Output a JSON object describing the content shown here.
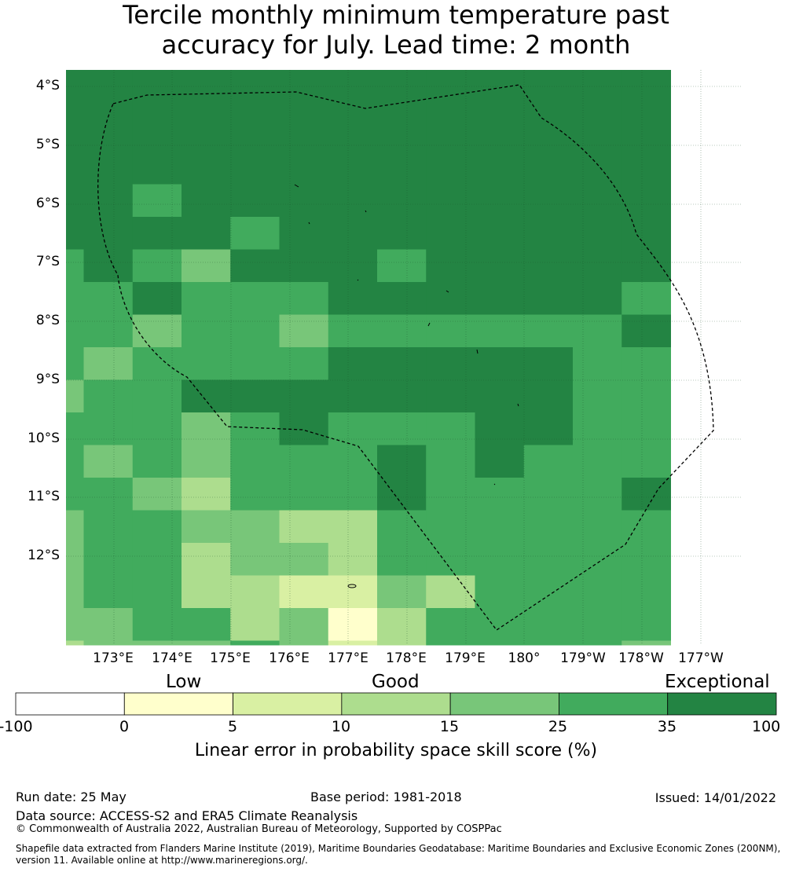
{
  "title_line1": "Tercile monthly minimum temperature past",
  "title_line2": "accuracy for July. Lead time: 2 month",
  "map": {
    "lon_labels": [
      "173°E",
      "174°E",
      "175°E",
      "176°E",
      "177°E",
      "178°E",
      "179°E",
      "180°",
      "179°W",
      "178°W",
      "177°W"
    ],
    "lat_labels": [
      "4°S",
      "5°S",
      "6°S",
      "7°S",
      "8°S",
      "9°S",
      "10°S",
      "11°S",
      "12°S"
    ],
    "grid": [
      "6666666666666",
      "6666666666666",
      "6666666666666",
      "6666666666666",
      "6656666666666",
      "6666566666666",
      "5654666566666",
      "5565556666665",
      "5545545555556",
      "5455556666655",
      "4556666666655",
      "5554565556655",
      "5454555656555",
      "5543555655556",
      "4554433555555",
      "4553443555555",
      "4553322435555",
      "4455341355555",
      "3444542355554",
      "3344223455544",
      "3314444345444"
    ]
  },
  "legend": {
    "categories": [
      "Low",
      "Good",
      "Exceptional"
    ],
    "bins": [
      {
        "from": -100,
        "to": 0,
        "color": "#ffffff"
      },
      {
        "from": 0,
        "to": 5,
        "color": "#ffffcc"
      },
      {
        "from": 5,
        "to": 10,
        "color": "#d9f0a3"
      },
      {
        "from": 10,
        "to": 15,
        "color": "#addd8e"
      },
      {
        "from": 15,
        "to": 25,
        "color": "#78c679"
      },
      {
        "from": 25,
        "to": 35,
        "color": "#41ab5d"
      },
      {
        "from": 35,
        "to": 100,
        "color": "#238443"
      }
    ],
    "ticks": [
      "-100",
      "0",
      "5",
      "10",
      "15",
      "25",
      "35",
      "100"
    ],
    "label": "Linear error in probability space skill score (%)"
  },
  "footer": {
    "run_date": "Run date: 25 May",
    "base_period": "Base period: 1981-2018",
    "issued": "Issued: 14/01/2022",
    "data_source": "Data source: ACCESS-S2 and ERA5 Climate Reanalysis",
    "copyright": "© Commonwealth of Australia 2022, Australian Bureau of Meteorology, Supported by COSPPac",
    "shapefile_line1": "Shapefile data extracted from Flanders Marine Institute (2019), Maritime Boundaries Geodatabase: Maritime Boundaries and Exclusive Economic Zones (200NM),",
    "shapefile_line2": "version 11. Available online at http://www.marineregions.org/."
  }
}
